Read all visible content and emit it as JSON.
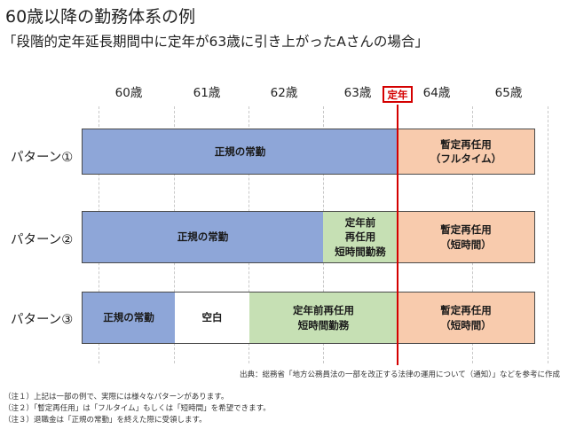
{
  "title": "60歳以降の勤務体系の例",
  "subtitle": "「段階的定年延長期間中に定年が63歳に引き上がったAさんの場合」",
  "ages": [
    "60歳",
    "61歳",
    "62歳",
    "63歳",
    "64歳",
    "65歳"
  ],
  "retirement_label": "定年",
  "patterns": [
    {
      "label": "パターン①",
      "segments": [
        {
          "text": "正規の常勤",
          "color": "blue"
        },
        {
          "text": "暫定再任用\n（フルタイム）",
          "color": "orange"
        }
      ]
    },
    {
      "label": "パターン②",
      "segments": [
        {
          "text": "正規の常勤",
          "color": "blue"
        },
        {
          "text": "定年前\n再任用\n短時間勤務",
          "color": "green"
        },
        {
          "text": "暫定再任用\n（短時間）",
          "color": "orange"
        }
      ]
    },
    {
      "label": "パターン③",
      "segments": [
        {
          "text": "正規の常勤",
          "color": "blue"
        },
        {
          "text": "空白",
          "color": "white"
        },
        {
          "text": "定年前再任用\n短時間勤務",
          "color": "green"
        },
        {
          "text": "暫定再任用\n（短時間）",
          "color": "orange"
        }
      ]
    }
  ],
  "source": "出典：総務省「地方公務員法の一部を改正する法律の運用について（通知）」などを参考に作成",
  "notes": [
    "（注１）上記は一部の例で、実際には様々なパターンがあります。",
    "（注２）「暫定再任用」は「フルタイム」もしくは「短時間」を希望できます。",
    "（注３）退職金は「正規の常勤」を終えた際に受領します。"
  ],
  "colors": {
    "blue": "#8ea6d8",
    "green": "#c6e0b4",
    "orange": "#f8cbad",
    "white": "#ffffff",
    "retirement_line": "#d40000"
  }
}
